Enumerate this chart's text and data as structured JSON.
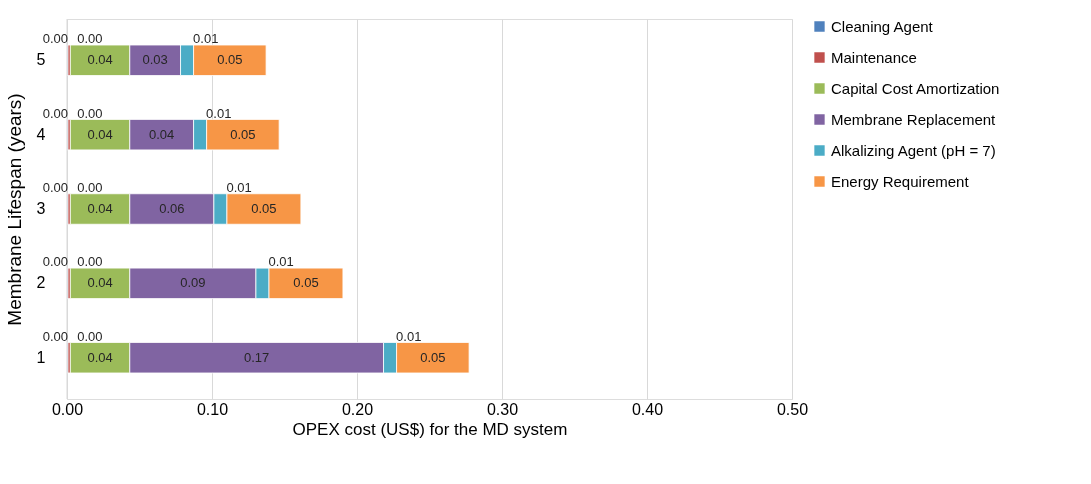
{
  "chart_data": {
    "type": "bar",
    "orientation": "horizontal",
    "stacked": true,
    "xlabel": "OPEX cost (US$) for the MD system",
    "ylabel": "Membrane Lifespan (years)",
    "categories": [
      "5",
      "4",
      "3",
      "2",
      "1"
    ],
    "xlim": [
      0,
      0.5
    ],
    "xticks": [
      {
        "value": 0,
        "label": "0.00"
      },
      {
        "value": 0.1,
        "label": "0.10"
      },
      {
        "value": 0.2,
        "label": "0.20"
      },
      {
        "value": 0.3,
        "label": "0.30"
      },
      {
        "value": 0.4,
        "label": "0.40"
      },
      {
        "value": 0.5,
        "label": "0.50"
      }
    ],
    "grid": "x",
    "legend": "right",
    "series": [
      {
        "name": "Cleaning Agent",
        "color": "#4f81bd",
        "values": [
          0.0007,
          0.0007,
          0.0007,
          0.0007,
          0.0007
        ],
        "value_labels": [
          "0.00",
          "0.00",
          "0.00",
          "0.00",
          "0.00"
        ]
      },
      {
        "name": "Maintenance",
        "color": "#c0504d",
        "values": [
          0.0016,
          0.0016,
          0.0016,
          0.0016,
          0.0016
        ],
        "value_labels": [
          "0.00",
          "0.00",
          "0.00",
          "0.00",
          "0.00"
        ]
      },
      {
        "name": "Capital Cost Amortization",
        "color": "#9bbb59",
        "values": [
          0.041,
          0.041,
          0.041,
          0.041,
          0.041
        ],
        "value_labels": [
          "0.04",
          "0.04",
          "0.04",
          "0.04",
          "0.04"
        ]
      },
      {
        "name": "Membrane Replacement",
        "color": "#8064a2",
        "values": [
          0.035,
          0.044,
          0.058,
          0.087,
          0.175
        ],
        "value_labels": [
          "0.03",
          "0.04",
          "0.06",
          "0.09",
          "0.17"
        ]
      },
      {
        "name": "Alkalizing Agent (pH = 7)",
        "color": "#4bacc6",
        "values": [
          0.009,
          0.009,
          0.009,
          0.009,
          0.009
        ],
        "value_labels": [
          "0.01",
          "0.01",
          "0.01",
          "0.01",
          "0.01"
        ]
      },
      {
        "name": "Energy Requirement",
        "color": "#f79646",
        "values": [
          0.05,
          0.05,
          0.051,
          0.051,
          0.05
        ],
        "value_labels": [
          "0.05",
          "0.05",
          "0.05",
          "0.05",
          "0.05"
        ]
      }
    ]
  }
}
